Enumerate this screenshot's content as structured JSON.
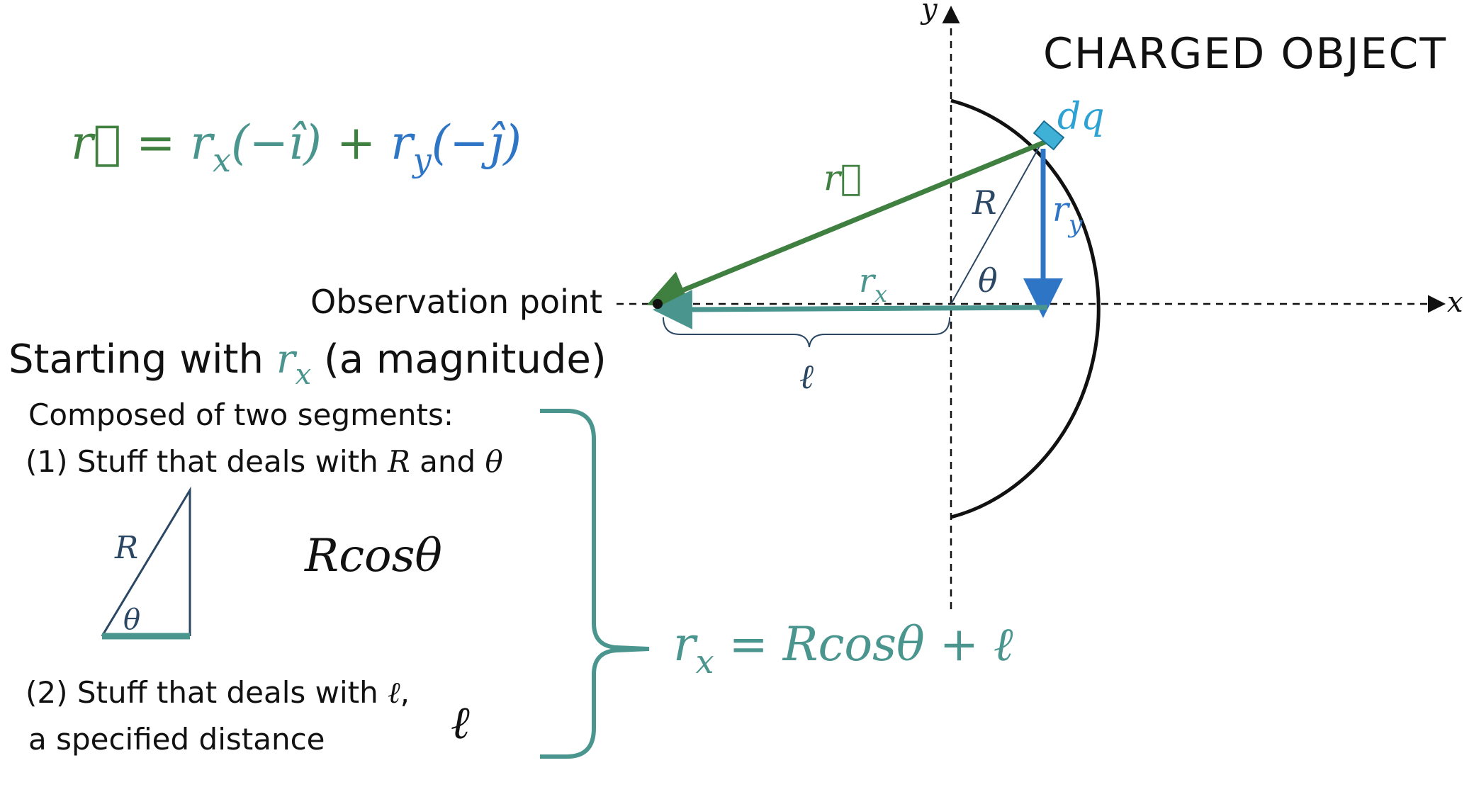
{
  "colors": {
    "green": "#3f7f3f",
    "teal": "#4a958e",
    "blue": "#2e75c6",
    "light_blue": "#2ea3d3",
    "navy": "#2b4763",
    "black": "#111111"
  },
  "title": "CHARGED OBJECT",
  "axes": {
    "x_label": "x",
    "y_label": "y"
  },
  "equation": {
    "r": "r⃗",
    "eq": " = ",
    "rx_term": "r",
    "rx_sub": "x",
    "rx_unit": "(−î)",
    "plus": " + ",
    "ry_term": "r",
    "ry_sub": "y",
    "ry_unit": "(−ĵ)"
  },
  "labels": {
    "dq": "dq",
    "r_vector": "r⃗",
    "R": "R",
    "theta": "θ",
    "ry_main": "r",
    "ry_sub": "y",
    "rx_main": "r",
    "rx_sub": "x",
    "ell": "ℓ",
    "observation_point": "Observation point"
  },
  "text": {
    "heading_pre": "Starting with ",
    "heading_r": "r",
    "heading_sub": "x",
    "heading_post": " (a magnitude)",
    "composed": "Composed of two segments:",
    "item1_pre": "(1)  Stuff that deals with ",
    "item1_R": "R",
    "item1_and": " and ",
    "item1_theta": "θ",
    "triangle_R": "R",
    "triangle_theta": "θ",
    "rcos": "Rcosθ",
    "item2_line1_pre": "(2) Stuff that deals with ",
    "item2_ell": "ℓ",
    "item2_comma": ",",
    "item2_line2": "a specified distance",
    "ell_big": "ℓ",
    "result_r": "r",
    "result_sub": "x",
    "result_rhs": " = Rcosθ + ℓ"
  }
}
